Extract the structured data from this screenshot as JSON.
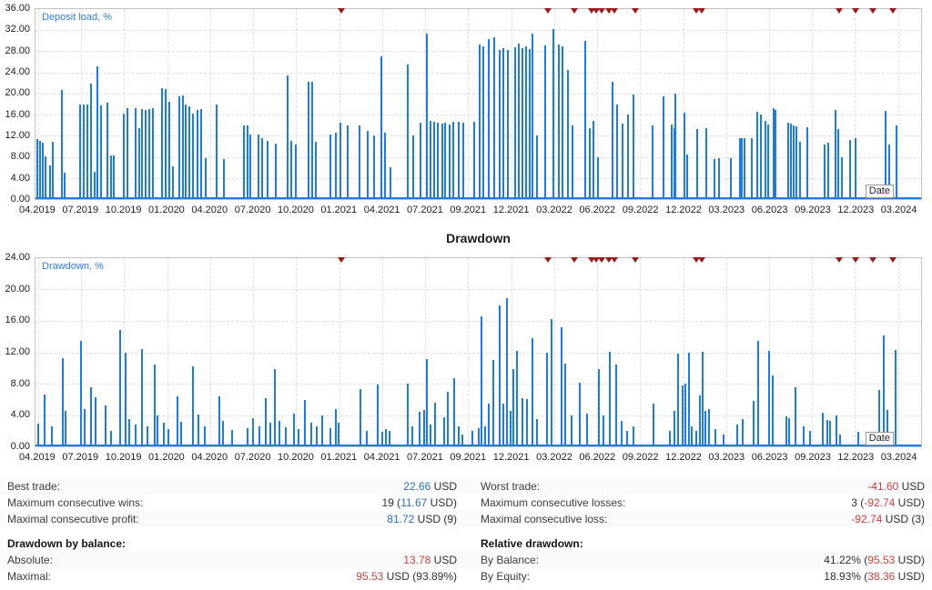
{
  "colors": {
    "bar_blue": "#1b7ce6",
    "marker_red": "#9b1b1b",
    "value_blue": "#2b6fc2",
    "value_red": "#c9423c",
    "series_label_blue": "#2b7bdc"
  },
  "chart_data": [
    {
      "type": "bar",
      "id": "deposit-load",
      "label": "Deposit load, %",
      "xlabel": "Date",
      "ylabel": "Deposit load, %",
      "ylim": [
        0,
        36
      ],
      "grid": true,
      "y_ticks": [
        "36.00",
        "32.00",
        "28.00",
        "24.00",
        "20.00",
        "16.00",
        "12.00",
        "8.00",
        "4.00",
        "0.00"
      ],
      "x_ticks": [
        "04.2019",
        "07.2019",
        "10.2019",
        "01.2020",
        "04.2020",
        "07.2020",
        "10.2020",
        "01.2021",
        "04.2021",
        "07.2021",
        "09.2021",
        "12.2021",
        "03.2022",
        "06.2022",
        "09.2022",
        "12.2022",
        "03.2023",
        "06.2023",
        "09.2023",
        "12.2023",
        "03.2024"
      ],
      "markers_x_pct": [
        34.5,
        57.9,
        60.8,
        62.8,
        63.3,
        63.9,
        64.7,
        65.4,
        67.7,
        74.6,
        75.2,
        90.8,
        92.6,
        94.6,
        96.8
      ],
      "bars": [
        [
          0.2,
          11.4
        ],
        [
          0.5,
          11.0
        ],
        [
          0.8,
          10.6
        ],
        [
          1.1,
          8.1
        ],
        [
          1.6,
          6.3
        ],
        [
          2.0,
          10.8
        ],
        [
          3.0,
          20.7
        ],
        [
          3.3,
          5.0
        ],
        [
          5.0,
          17.9
        ],
        [
          5.4,
          17.9
        ],
        [
          5.9,
          18.0
        ],
        [
          6.3,
          21.9
        ],
        [
          6.7,
          5.2
        ],
        [
          7.0,
          25.1
        ],
        [
          7.4,
          17.8
        ],
        [
          8.1,
          18.2
        ],
        [
          8.5,
          8.3
        ],
        [
          8.8,
          8.3
        ],
        [
          10.0,
          16.2
        ],
        [
          10.4,
          17.3
        ],
        [
          11.3,
          17.3
        ],
        [
          11.7,
          13.5
        ],
        [
          12.0,
          17.0
        ],
        [
          12.4,
          16.8
        ],
        [
          12.8,
          17.0
        ],
        [
          13.3,
          17.2
        ],
        [
          14.3,
          21.0
        ],
        [
          14.7,
          20.8
        ],
        [
          15.1,
          18.5
        ],
        [
          15.5,
          6.2
        ],
        [
          16.2,
          19.5
        ],
        [
          16.6,
          19.7
        ],
        [
          17.0,
          18.0
        ],
        [
          17.4,
          17.5
        ],
        [
          17.8,
          16.2
        ],
        [
          18.3,
          16.9
        ],
        [
          18.7,
          17.0
        ],
        [
          19.2,
          7.8
        ],
        [
          20.5,
          17.9
        ],
        [
          21.3,
          7.5
        ],
        [
          23.5,
          13.9
        ],
        [
          23.9,
          14.0
        ],
        [
          24.3,
          12.3
        ],
        [
          25.2,
          12.2
        ],
        [
          25.6,
          11.5
        ],
        [
          26.2,
          11.0
        ],
        [
          27.1,
          10.5
        ],
        [
          28.5,
          23.4
        ],
        [
          28.9,
          11.0
        ],
        [
          29.4,
          10.4
        ],
        [
          30.8,
          22.2
        ],
        [
          31.2,
          22.3
        ],
        [
          31.7,
          10.8
        ],
        [
          33.3,
          12.3
        ],
        [
          33.9,
          12.5
        ],
        [
          34.4,
          14.4
        ],
        [
          35.3,
          13.9
        ],
        [
          36.6,
          14.0
        ],
        [
          37.5,
          13.0
        ],
        [
          38.2,
          12.0
        ],
        [
          39.1,
          27.0
        ],
        [
          39.5,
          12.5
        ],
        [
          40.1,
          6.0
        ],
        [
          42.0,
          25.5
        ],
        [
          42.7,
          12.0
        ],
        [
          43.5,
          14.5
        ],
        [
          44.2,
          31.4
        ],
        [
          44.6,
          14.8
        ],
        [
          45.0,
          14.6
        ],
        [
          45.4,
          14.4
        ],
        [
          45.9,
          14.3
        ],
        [
          46.3,
          14.5
        ],
        [
          46.8,
          14.2
        ],
        [
          47.2,
          14.6
        ],
        [
          47.8,
          14.7
        ],
        [
          48.3,
          14.5
        ],
        [
          49.5,
          14.6
        ],
        [
          50.2,
          29.2
        ],
        [
          50.6,
          29.0
        ],
        [
          51.2,
          30.3
        ],
        [
          51.8,
          30.7
        ],
        [
          52.4,
          28.2
        ],
        [
          52.8,
          28.6
        ],
        [
          53.3,
          28.3
        ],
        [
          54.2,
          28.8
        ],
        [
          54.6,
          29.5
        ],
        [
          55.0,
          28.6
        ],
        [
          55.4,
          29.0
        ],
        [
          55.8,
          28.4
        ],
        [
          56.1,
          31.3
        ],
        [
          56.6,
          12.0
        ],
        [
          57.6,
          29.1
        ],
        [
          58.5,
          32.2
        ],
        [
          59.1,
          29.3
        ],
        [
          59.5,
          29.0
        ],
        [
          60.1,
          24.5
        ],
        [
          60.6,
          14.0
        ],
        [
          62.1,
          29.9
        ],
        [
          62.6,
          13.5
        ],
        [
          63.0,
          14.9
        ],
        [
          63.5,
          8.0
        ],
        [
          65.2,
          22.3
        ],
        [
          65.7,
          18.0
        ],
        [
          66.3,
          14.3
        ],
        [
          66.9,
          16.0
        ],
        [
          67.5,
          19.8
        ],
        [
          69.7,
          13.9
        ],
        [
          70.9,
          19.4
        ],
        [
          71.8,
          14.1
        ],
        [
          72.1,
          13.4
        ],
        [
          72.3,
          19.9
        ],
        [
          73.3,
          16.3
        ],
        [
          73.6,
          8.5
        ],
        [
          74.7,
          13.3
        ],
        [
          75.7,
          13.5
        ],
        [
          76.7,
          7.6
        ],
        [
          77.2,
          7.7
        ],
        [
          78.5,
          7.8
        ],
        [
          79.5,
          11.6
        ],
        [
          79.8,
          11.6
        ],
        [
          80.1,
          11.5
        ],
        [
          80.9,
          11.6
        ],
        [
          81.5,
          16.6
        ],
        [
          81.9,
          16.1
        ],
        [
          82.4,
          14.8
        ],
        [
          82.7,
          14.2
        ],
        [
          83.3,
          17.2
        ],
        [
          83.6,
          16.8
        ],
        [
          85.0,
          14.4
        ],
        [
          85.3,
          14.3
        ],
        [
          85.6,
          14.0
        ],
        [
          85.9,
          13.8
        ],
        [
          86.3,
          10.9
        ],
        [
          87.2,
          13.6
        ],
        [
          89.1,
          10.4
        ],
        [
          89.5,
          10.6
        ],
        [
          90.3,
          16.9
        ],
        [
          90.6,
          13.2
        ],
        [
          91.1,
          8.0
        ],
        [
          92.0,
          11.2
        ],
        [
          92.6,
          11.5
        ],
        [
          96.0,
          16.7
        ],
        [
          96.4,
          10.4
        ],
        [
          97.2,
          14.0
        ]
      ]
    },
    {
      "type": "bar",
      "id": "drawdown",
      "title": "Drawdown",
      "label": "Drawdown, %",
      "xlabel": "Date",
      "ylabel": "Drawdown, %",
      "ylim": [
        0,
        24
      ],
      "grid": true,
      "y_ticks": [
        "24.00",
        "20.00",
        "16.00",
        "12.00",
        "8.00",
        "4.00",
        "0.00"
      ],
      "x_ticks": [
        "04.2019",
        "07.2019",
        "10.2019",
        "01.2020",
        "04.2020",
        "07.2020",
        "10.2020",
        "01.2021",
        "04.2021",
        "07.2021",
        "09.2021",
        "12.2021",
        "03.2022",
        "06.2022",
        "09.2022",
        "12.2022",
        "03.2023",
        "06.2023",
        "09.2023",
        "12.2023",
        "03.2024"
      ],
      "markers_x_pct": [
        34.5,
        57.9,
        60.8,
        62.8,
        63.3,
        63.9,
        64.7,
        65.4,
        67.7,
        74.6,
        75.2,
        90.8,
        92.6,
        94.6,
        96.8
      ],
      "bars": [
        [
          0.3,
          2.9
        ],
        [
          1.0,
          6.6
        ],
        [
          1.9,
          2.5
        ],
        [
          3.1,
          11.2
        ],
        [
          3.4,
          4.5
        ],
        [
          5.1,
          13.4
        ],
        [
          5.5,
          4.8
        ],
        [
          6.3,
          7.5
        ],
        [
          6.8,
          6.3
        ],
        [
          7.9,
          5.2
        ],
        [
          8.5,
          2.0
        ],
        [
          9.6,
          14.9
        ],
        [
          10.2,
          11.9
        ],
        [
          10.6,
          3.5
        ],
        [
          11.3,
          2.8
        ],
        [
          12.0,
          12.4
        ],
        [
          12.6,
          2.5
        ],
        [
          13.5,
          10.4
        ],
        [
          13.8,
          4.0
        ],
        [
          14.5,
          3.0
        ],
        [
          15.0,
          2.2
        ],
        [
          16.0,
          6.4
        ],
        [
          16.4,
          3.1
        ],
        [
          17.8,
          10.2
        ],
        [
          18.4,
          4.1
        ],
        [
          19.1,
          2.5
        ],
        [
          20.8,
          6.4
        ],
        [
          21.2,
          3.3
        ],
        [
          22.2,
          2.1
        ],
        [
          23.9,
          2.3
        ],
        [
          24.6,
          3.6
        ],
        [
          25.3,
          2.6
        ],
        [
          26.0,
          6.2
        ],
        [
          26.5,
          3.0
        ],
        [
          27.0,
          9.9
        ],
        [
          27.5,
          3.2
        ],
        [
          28.3,
          2.4
        ],
        [
          29.2,
          4.2
        ],
        [
          29.7,
          2.2
        ],
        [
          30.4,
          5.9
        ],
        [
          31.1,
          3.0
        ],
        [
          31.8,
          2.5
        ],
        [
          32.4,
          4.0
        ],
        [
          33.3,
          2.3
        ],
        [
          33.9,
          4.7
        ],
        [
          34.2,
          3.0
        ],
        [
          36.7,
          7.3
        ],
        [
          37.4,
          2.0
        ],
        [
          38.6,
          7.9
        ],
        [
          39.2,
          1.8
        ],
        [
          39.6,
          2.2
        ],
        [
          40.0,
          2.0
        ],
        [
          42.0,
          8.0
        ],
        [
          42.5,
          2.6
        ],
        [
          43.4,
          4.4
        ],
        [
          43.9,
          4.6
        ],
        [
          44.2,
          11.1
        ],
        [
          44.6,
          2.8
        ],
        [
          45.1,
          5.6
        ],
        [
          46.1,
          3.7
        ],
        [
          46.6,
          7.0
        ],
        [
          47.3,
          8.7
        ],
        [
          47.8,
          2.5
        ],
        [
          48.2,
          1.5
        ],
        [
          49.3,
          2.0
        ],
        [
          50.0,
          2.3
        ],
        [
          50.4,
          16.6
        ],
        [
          50.8,
          2.5
        ],
        [
          51.2,
          5.5
        ],
        [
          51.7,
          11.0
        ],
        [
          52.4,
          18.0
        ],
        [
          52.8,
          5.5
        ],
        [
          53.2,
          18.9
        ],
        [
          53.6,
          4.5
        ],
        [
          54.0,
          9.8
        ],
        [
          54.4,
          12.2
        ],
        [
          55.0,
          6.2
        ],
        [
          55.5,
          6.0
        ],
        [
          56.1,
          13.8
        ],
        [
          56.6,
          3.5
        ],
        [
          57.8,
          12.0
        ],
        [
          58.3,
          16.2
        ],
        [
          59.4,
          15.2
        ],
        [
          59.8,
          10.5
        ],
        [
          60.5,
          4.0
        ],
        [
          61.5,
          8.1
        ],
        [
          62.3,
          4.2
        ],
        [
          63.6,
          9.8
        ],
        [
          64.1,
          4.0
        ],
        [
          64.9,
          12.1
        ],
        [
          65.6,
          10.4
        ],
        [
          66.2,
          3.2
        ],
        [
          66.8,
          2.0
        ],
        [
          67.5,
          2.5
        ],
        [
          69.8,
          5.5
        ],
        [
          71.6,
          2.0
        ],
        [
          72.1,
          4.5
        ],
        [
          72.6,
          11.8
        ],
        [
          73.1,
          7.8
        ],
        [
          73.4,
          8.0
        ],
        [
          73.8,
          12.0
        ],
        [
          74.1,
          2.5
        ],
        [
          74.6,
          2.0
        ],
        [
          75.0,
          6.5
        ],
        [
          75.3,
          12.1
        ],
        [
          75.6,
          4.5
        ],
        [
          76.1,
          4.8
        ],
        [
          76.8,
          2.2
        ],
        [
          77.7,
          1.5
        ],
        [
          79.2,
          2.8
        ],
        [
          79.9,
          3.5
        ],
        [
          81.1,
          5.8
        ],
        [
          81.6,
          13.5
        ],
        [
          82.8,
          12.2
        ],
        [
          83.2,
          9.0
        ],
        [
          84.8,
          3.8
        ],
        [
          85.1,
          3.6
        ],
        [
          85.8,
          7.5
        ],
        [
          86.7,
          2.5
        ],
        [
          87.5,
          2.0
        ],
        [
          88.9,
          4.3
        ],
        [
          89.4,
          3.4
        ],
        [
          89.7,
          3.3
        ],
        [
          90.4,
          4.0
        ],
        [
          90.9,
          1.5
        ],
        [
          92.9,
          1.8
        ],
        [
          95.3,
          7.2
        ],
        [
          95.8,
          14.1
        ],
        [
          96.2,
          4.6
        ],
        [
          97.1,
          12.3
        ]
      ]
    }
  ],
  "stats": {
    "rows": [
      {
        "bold": false,
        "left": {
          "label": "Best trade:",
          "parts": [
            [
              "22.66",
              "blue"
            ],
            [
              " USD",
              "plain"
            ]
          ]
        },
        "right": {
          "label": "Worst trade:",
          "parts": [
            [
              "-41.60",
              "red"
            ],
            [
              " USD",
              "plain"
            ]
          ]
        }
      },
      {
        "bold": false,
        "left": {
          "label": "Maximum consecutive wins:",
          "parts": [
            [
              "19 (",
              "plain"
            ],
            [
              "11.67",
              "blue"
            ],
            [
              " USD)",
              "plain"
            ]
          ]
        },
        "right": {
          "label": "Maximum consecutive losses:",
          "parts": [
            [
              "3 (",
              "plain"
            ],
            [
              "-92.74",
              "red"
            ],
            [
              " USD)",
              "plain"
            ]
          ]
        }
      },
      {
        "bold": false,
        "left": {
          "label": "Maximal consecutive profit:",
          "parts": [
            [
              "81.72",
              "blue"
            ],
            [
              " USD (9)",
              "plain"
            ]
          ]
        },
        "right": {
          "label": "Maximal consecutive loss:",
          "parts": [
            [
              "-92.74",
              "red"
            ],
            [
              " USD (3)",
              "plain"
            ]
          ]
        }
      },
      {
        "bold": true,
        "left": {
          "label": "Drawdown by balance:",
          "parts": []
        },
        "right": {
          "label": "Relative drawdown:",
          "parts": []
        }
      },
      {
        "bold": false,
        "left": {
          "label": "Absolute:",
          "parts": [
            [
              "13.78",
              "red"
            ],
            [
              " USD",
              "plain"
            ]
          ]
        },
        "right": {
          "label": "By Balance:",
          "parts": [
            [
              "41.22% (",
              "plain"
            ],
            [
              "95.53",
              "red"
            ],
            [
              " USD)",
              "plain"
            ]
          ]
        }
      },
      {
        "bold": false,
        "left": {
          "label": "Maximal:",
          "parts": [
            [
              "95.53",
              "red"
            ],
            [
              " USD (93.89%)",
              "plain"
            ]
          ]
        },
        "right": {
          "label": "By Equity:",
          "parts": [
            [
              "18.93% (",
              "plain"
            ],
            [
              "38.36",
              "red"
            ],
            [
              " USD)",
              "plain"
            ]
          ]
        }
      }
    ]
  }
}
